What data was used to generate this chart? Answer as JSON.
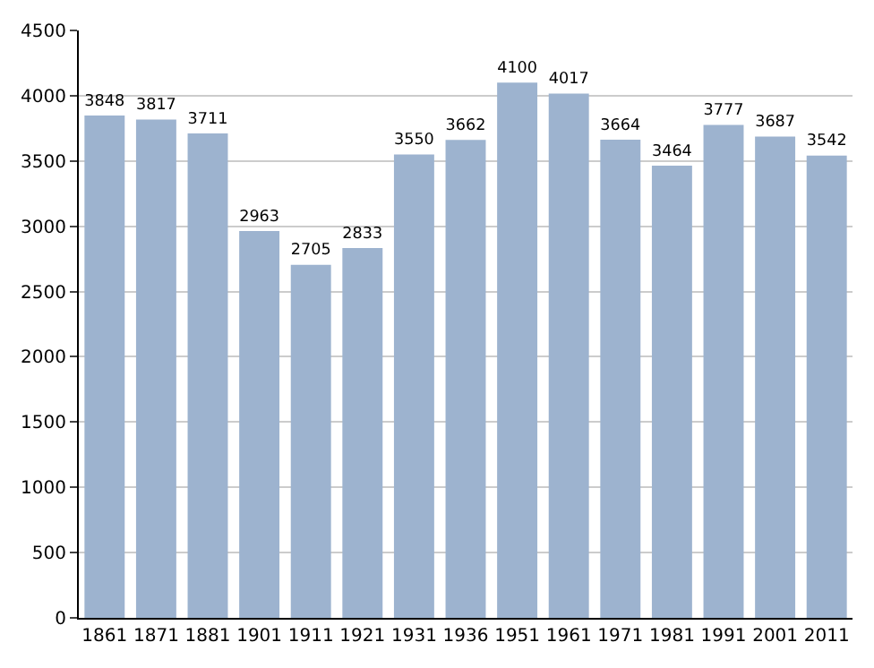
{
  "chart_data": {
    "type": "bar",
    "categories": [
      "1861",
      "1871",
      "1881",
      "1901",
      "1911",
      "1921",
      "1931",
      "1936",
      "1951",
      "1961",
      "1971",
      "1981",
      "1991",
      "2001",
      "2011"
    ],
    "values": [
      3848,
      3817,
      3711,
      2963,
      2705,
      2833,
      3550,
      3662,
      4100,
      4017,
      3664,
      3464,
      3777,
      3687,
      3542
    ],
    "color": "#9db3cf",
    "ylim": [
      0,
      4500
    ],
    "yticks": [
      0,
      500,
      1000,
      1500,
      2000,
      2500,
      3000,
      3500,
      4000,
      4500
    ],
    "grid": "y",
    "data_labels": true
  }
}
